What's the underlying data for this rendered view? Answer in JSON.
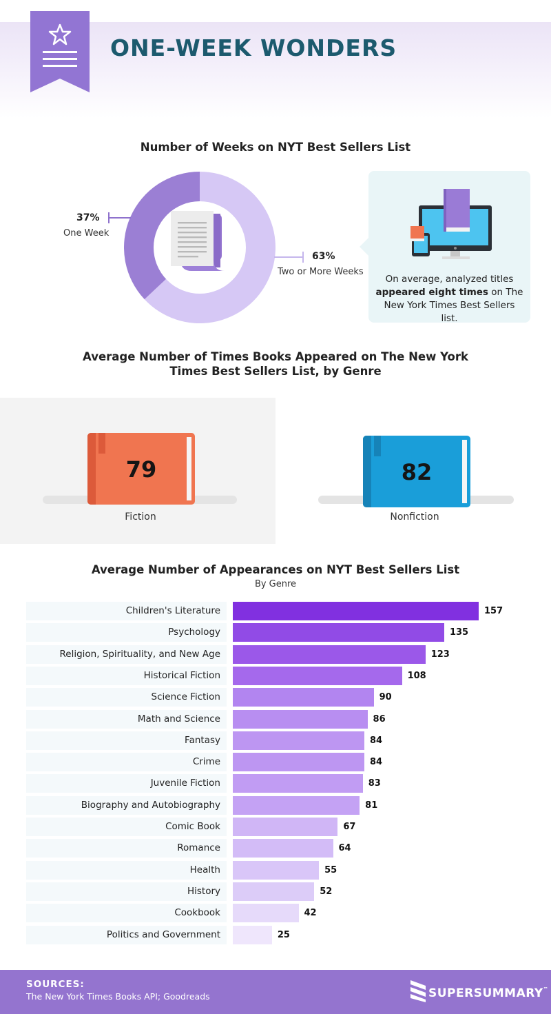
{
  "header": {
    "title": "ONE-WEEK WONDERS"
  },
  "donut_section": {
    "title": "Number of Weeks on NYT Best Sellers List",
    "segments": [
      {
        "pct": "37%",
        "label": "One Week",
        "value": 37,
        "color": "#9b7fd4"
      },
      {
        "pct": "63%",
        "label": "Two or More Weeks",
        "value": 63,
        "color": "#d6c8f5"
      }
    ],
    "info_pre": "On average, analyzed titles ",
    "info_bold": "appeared eight times",
    "info_post": " on The New York Times Best Sellers list."
  },
  "genre_section": {
    "title_line1": "Average Number of Times Books Appeared on The New York",
    "title_line2": "Times Best Sellers List, by Genre",
    "fiction": {
      "value": "79",
      "label": "Fiction",
      "color": "#f07550",
      "spine": "#dc5a3a"
    },
    "nonfiction": {
      "value": "82",
      "label": "Nonfiction",
      "color": "#1a9ed9",
      "spine": "#1683b8"
    }
  },
  "chart_data": {
    "type": "bar",
    "title": "Average Number of Appearances on NYT Best Sellers List",
    "subtitle": "By Genre",
    "categories": [
      "Children's Literature",
      "Psychology",
      "Religion, Spirituality, and New Age",
      "Historical Fiction",
      "Science Fiction",
      "Math and Science",
      "Fantasy",
      "Crime",
      "Juvenile Fiction",
      "Biography and Autobiography",
      "Comic Book",
      "Romance",
      "Health",
      "History",
      "Cookbook",
      "Politics and Government"
    ],
    "values": [
      157,
      135,
      123,
      108,
      90,
      86,
      84,
      84,
      83,
      81,
      67,
      64,
      55,
      52,
      42,
      25
    ],
    "colors": [
      "#8130e0",
      "#914be6",
      "#9b58e9",
      "#a569ec",
      "#b285f0",
      "#b88ef1",
      "#bd96f2",
      "#bd96f2",
      "#c19cf3",
      "#c4a2f4",
      "#d0b6f6",
      "#d3bcf7",
      "#d9c6f8",
      "#dcccf8",
      "#e6dafa",
      "#efe6fc"
    ],
    "xlim": [
      0,
      157
    ],
    "orientation": "horizontal"
  },
  "footer": {
    "sources_heading": "SOURCES:",
    "sources_text": "The New York Times Books API; Goodreads",
    "logo_text": "SUPERSUMMARY",
    "logo_tm": "™"
  }
}
